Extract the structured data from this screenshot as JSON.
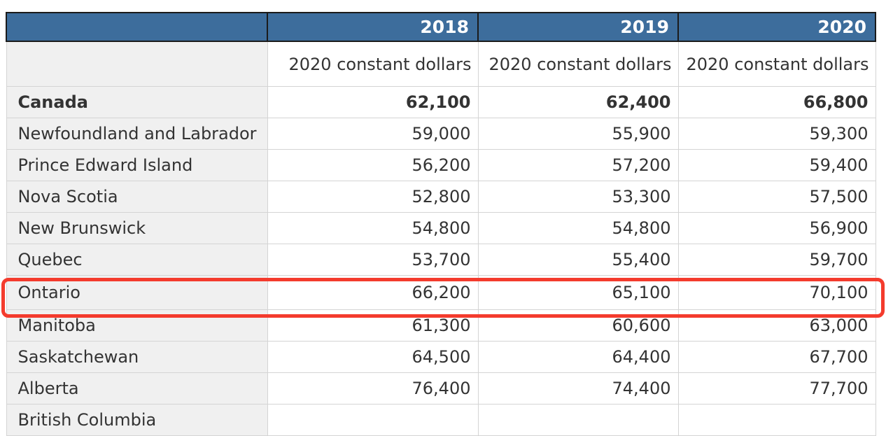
{
  "table": {
    "year_headers": [
      "2018",
      "2019",
      "2020"
    ],
    "unit_labels": [
      "2020 constant dollars",
      "2020 constant dollars",
      "2020 constant dollars"
    ],
    "rows": [
      {
        "label": "Canada",
        "values": [
          "62,100",
          "62,400",
          "66,800"
        ],
        "bold": true
      },
      {
        "label": "Newfoundland and Labrador",
        "values": [
          "59,000",
          "55,900",
          "59,300"
        ]
      },
      {
        "label": "Prince Edward Island",
        "values": [
          "56,200",
          "57,200",
          "59,400"
        ]
      },
      {
        "label": "Nova Scotia",
        "values": [
          "52,800",
          "53,300",
          "57,500"
        ]
      },
      {
        "label": "New Brunswick",
        "values": [
          "54,800",
          "54,800",
          "56,900"
        ]
      },
      {
        "label": "Quebec",
        "values": [
          "53,700",
          "55,400",
          "59,700"
        ]
      },
      {
        "label": "Ontario",
        "values": [
          "66,200",
          "65,100",
          "70,100"
        ],
        "highlighted": true
      },
      {
        "label": "Manitoba",
        "values": [
          "61,300",
          "60,600",
          "63,000"
        ]
      },
      {
        "label": "Saskatchewan",
        "values": [
          "64,500",
          "64,400",
          "67,700"
        ]
      },
      {
        "label": "Alberta",
        "values": [
          "76,400",
          "74,400",
          "77,700"
        ]
      },
      {
        "label": "British Columbia",
        "values": [
          "",
          "",
          ""
        ],
        "partially_visible": true
      }
    ],
    "highlighted_row": "Ontario"
  },
  "colors": {
    "header_bg": "#3d6d9c",
    "header_text": "#ffffff",
    "header_border": "#1b1b1b",
    "row_label_bg": "#f0f0f0",
    "grid_border": "#d4d4d4",
    "text": "#333333",
    "highlight_red": "#f43b2d"
  },
  "chart_data": {
    "type": "table",
    "columns": [
      "",
      "2018",
      "2019",
      "2020"
    ],
    "units_row": [
      "",
      "2020 constant dollars",
      "2020 constant dollars",
      "2020 constant dollars"
    ],
    "rows": [
      [
        "Canada",
        62100,
        62400,
        66800
      ],
      [
        "Newfoundland and Labrador",
        59000,
        55900,
        59300
      ],
      [
        "Prince Edward Island",
        56200,
        57200,
        59400
      ],
      [
        "Nova Scotia",
        52800,
        53300,
        57500
      ],
      [
        "New Brunswick",
        54800,
        54800,
        56900
      ],
      [
        "Quebec",
        53700,
        55400,
        59700
      ],
      [
        "Ontario",
        66200,
        65100,
        70100
      ],
      [
        "Manitoba",
        61300,
        60600,
        63000
      ],
      [
        "Saskatchewan",
        64500,
        64400,
        67700
      ],
      [
        "Alberta",
        76400,
        74400,
        77700
      ]
    ],
    "highlighted_row": "Ontario",
    "notes": "Ontario row circled in red; British Columbia row clipped at bottom edge"
  }
}
